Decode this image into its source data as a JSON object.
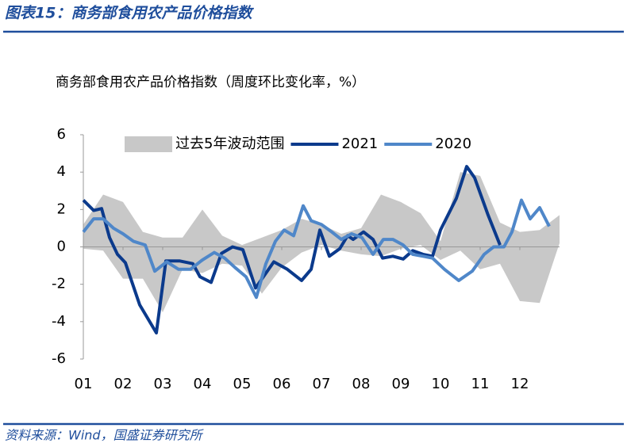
{
  "header": {
    "title": "图表15：商务部食用农产品价格指数"
  },
  "chart_data": {
    "type": "line",
    "subtitle": "商务部食用农产品价格指数（周度环比变化率，%）",
    "xlim": [
      0,
      12
    ],
    "xticks": [
      {
        "value": 0,
        "label": "01"
      },
      {
        "value": 1,
        "label": "02"
      },
      {
        "value": 2,
        "label": "03"
      },
      {
        "value": 3,
        "label": "04"
      },
      {
        "value": 4,
        "label": "05"
      },
      {
        "value": 5,
        "label": "06"
      },
      {
        "value": 6,
        "label": "07"
      },
      {
        "value": 7,
        "label": "08"
      },
      {
        "value": 8,
        "label": "09"
      },
      {
        "value": 9,
        "label": "10"
      },
      {
        "value": 10,
        "label": "11"
      },
      {
        "value": 11,
        "label": "12"
      }
    ],
    "ylim": [
      -6,
      6
    ],
    "yticks": [
      -6,
      -4,
      -2,
      0,
      2,
      4,
      6
    ],
    "series": [
      {
        "name": "过去5年波动范围",
        "type": "area",
        "color": "#c8c8c8",
        "x": [
          0,
          0.5,
          1,
          1.5,
          2,
          2.5,
          3,
          3.5,
          4,
          4.5,
          5,
          5.5,
          6,
          6.5,
          7,
          7.5,
          8,
          8.5,
          9,
          9.5,
          10,
          10.5,
          11,
          11.5,
          12
        ],
        "high": [
          1.2,
          2.8,
          2.4,
          0.8,
          0.5,
          0.5,
          2.0,
          0.6,
          0.1,
          0.5,
          0.9,
          1.5,
          1.2,
          0.7,
          1.0,
          2.8,
          2.4,
          1.8,
          0.3,
          4.0,
          3.8,
          1.3,
          0.8,
          0.9,
          1.7
        ],
        "low": [
          -0.1,
          -0.2,
          -1.7,
          -1.7,
          -3.5,
          -1.2,
          -1.4,
          -0.9,
          -1.0,
          -2.5,
          -1.1,
          -0.3,
          0.1,
          -0.2,
          -0.4,
          -0.5,
          -0.1,
          0.1,
          -0.7,
          -0.2,
          -1.2,
          -0.9,
          -2.9,
          -3.0,
          0.2
        ]
      },
      {
        "name": "2021",
        "color": "#0b3a8c",
        "x": [
          0,
          0.26,
          0.46,
          0.66,
          0.86,
          1.06,
          1.42,
          1.84,
          2.08,
          2.42,
          2.76,
          2.94,
          3.22,
          3.48,
          3.76,
          4.02,
          4.34,
          4.8,
          5.14,
          5.5,
          5.74,
          5.96,
          6.2,
          6.46,
          6.66,
          6.8,
          7.06,
          7.3,
          7.54,
          7.8,
          8.06,
          8.3,
          8.56,
          8.8,
          9,
          9.4,
          9.66,
          9.86,
          10.2,
          10.5
        ],
        "values": [
          2.5,
          1.95,
          2.05,
          0.5,
          -0.4,
          -0.85,
          -3.1,
          -4.6,
          -0.75,
          -0.75,
          -0.9,
          -1.6,
          -1.9,
          -0.35,
          0,
          -0.15,
          -2.2,
          -0.8,
          -1.2,
          -1.8,
          -1.2,
          0.9,
          -0.5,
          -0.1,
          0.6,
          0.4,
          0.8,
          0.4,
          -0.6,
          -0.5,
          -0.65,
          -0.2,
          -0.4,
          -0.5,
          0.9,
          2.6,
          4.3,
          3.7,
          1.7,
          0.1
        ]
      },
      {
        "name": "2020",
        "color": "#4f87c9",
        "x": [
          0,
          0.26,
          0.5,
          0.76,
          1,
          1.26,
          1.56,
          1.8,
          2.1,
          2.4,
          2.7,
          3,
          3.3,
          3.56,
          3.82,
          4.1,
          4.36,
          4.6,
          4.84,
          5.06,
          5.3,
          5.54,
          5.74,
          6,
          6.26,
          6.5,
          6.76,
          7.02,
          7.3,
          7.56,
          7.8,
          8.06,
          8.3,
          8.56,
          8.8,
          9.1,
          9.46,
          9.8,
          10.1,
          10.34,
          10.6,
          10.8,
          11.04,
          11.26,
          11.5,
          11.74
        ],
        "values": [
          0.8,
          1.5,
          1.5,
          1.0,
          0.7,
          0.3,
          0.1,
          -1.3,
          -0.8,
          -1.2,
          -1.2,
          -0.7,
          -0.3,
          -0.6,
          -1.1,
          -1.6,
          -2.7,
          -0.9,
          0.3,
          0.9,
          0.6,
          2.2,
          1.4,
          1.2,
          0.8,
          0.4,
          0.7,
          0.5,
          -0.4,
          0.4,
          0.4,
          0.1,
          -0.4,
          -0.5,
          -0.6,
          -1.2,
          -1.8,
          -1.3,
          -0.4,
          0,
          0,
          0.8,
          2.5,
          1.5,
          2.1,
          1.1
        ]
      }
    ]
  },
  "footer": {
    "source": "资料来源：Wind，国盛证券研究所"
  }
}
